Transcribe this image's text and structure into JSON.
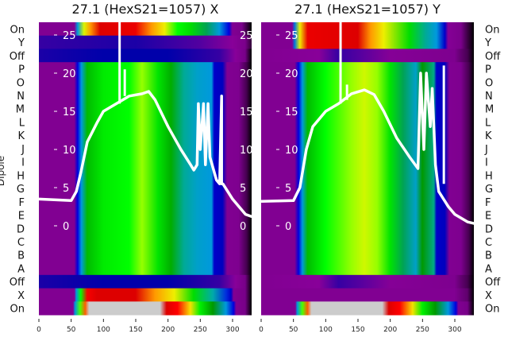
{
  "chart_data": {
    "type": "heatmap",
    "ylabel": "Dipole",
    "row_labels": [
      "On",
      "Y",
      "Off",
      "P",
      "O",
      "N",
      "M",
      "L",
      "K",
      "J",
      "I",
      "H",
      "G",
      "F",
      "E",
      "D",
      "C",
      "B",
      "A",
      "Off",
      "X",
      "On"
    ],
    "x_ticks": [
      0,
      50,
      100,
      150,
      200,
      250,
      300
    ],
    "x_tick_labels": [
      "0",
      "50",
      "100",
      "150",
      "200",
      "250",
      "300"
    ],
    "xlim": [
      0,
      330
    ],
    "overlay_y_ticks": [
      25,
      20,
      15,
      10,
      5,
      0
    ],
    "overlay_y_tick_labels": [
      "25",
      "20",
      "15",
      "10",
      "5",
      "0"
    ],
    "overlay_ylim": [
      -11.7,
      26.5
    ],
    "colormap": "nipy_spectral",
    "panels": [
      {
        "title": "27.1 (HexS21=1057) X",
        "row_profiles": [
          "on_top_x",
          "ybar_x",
          "off_x",
          "mid_x",
          "mid_x",
          "mid_x",
          "mid_x",
          "mid_x",
          "mid_x",
          "mid_x",
          "mid_x",
          "mid_x",
          "mid_x",
          "mid_x",
          "mid_x",
          "mid_x",
          "mid_x",
          "mid_x",
          "mid_x",
          "off_x",
          "xrow_x",
          "on_bot"
        ],
        "line": {
          "x": [
            0,
            50,
            58,
            65,
            75,
            90,
            100,
            120,
            140,
            160,
            170,
            180,
            200,
            220,
            235,
            240,
            245,
            247,
            250,
            255,
            258,
            262,
            265,
            270,
            275,
            280,
            283,
            283,
            285,
            300,
            320,
            330
          ],
          "y": [
            3.5,
            3.3,
            4.5,
            7,
            11,
            13.5,
            15,
            16,
            17,
            17.3,
            17.6,
            16.5,
            13,
            10,
            8,
            7.3,
            8,
            16,
            10,
            16,
            8,
            16,
            9,
            7.5,
            6,
            5.5,
            17,
            5.5,
            5.5,
            3.5,
            1.5,
            1.2
          ]
        },
        "spikes": [
          {
            "x": 125,
            "y": [
              16,
              27
            ]
          },
          {
            "x": 133,
            "y": [
              17,
              20.5
            ]
          }
        ]
      },
      {
        "title": "27.1 (HexS21=1057) Y",
        "row_profiles": [
          "on_top_y",
          "on_top_y",
          "off_y",
          "mid_y",
          "mid_y",
          "mid_y",
          "mid_y",
          "mid_y",
          "mid_y",
          "mid_y",
          "mid_y",
          "mid_y",
          "mid_y",
          "mid_y",
          "mid_y",
          "mid_y",
          "mid_y",
          "mid_y",
          "mid_y",
          "off_y",
          "xrow_y",
          "on_bot"
        ],
        "line": {
          "x": [
            0,
            50,
            60,
            70,
            80,
            100,
            120,
            140,
            160,
            175,
            190,
            210,
            230,
            243,
            247,
            252,
            256,
            262,
            265,
            270,
            275,
            290,
            300,
            320,
            330
          ],
          "y": [
            3.2,
            3.3,
            5,
            10,
            13,
            15,
            16,
            17.3,
            17.8,
            17.2,
            15,
            11.5,
            9,
            7.5,
            20,
            10,
            20,
            13,
            18,
            8,
            4.5,
            2.5,
            1.5,
            0.5,
            0.3
          ]
        },
        "spikes": [
          {
            "x": 123,
            "y": [
              16,
              27
            ]
          },
          {
            "x": 133,
            "y": [
              16.5,
              18.5
            ]
          },
          {
            "x": 283,
            "y": [
              5.5,
              21
            ]
          }
        ]
      }
    ],
    "profiles": {
      "mid_x": [
        [
          0,
          0.08
        ],
        [
          55,
          0.08
        ],
        [
          60,
          0.2
        ],
        [
          66,
          0.3
        ],
        [
          75,
          0.5
        ],
        [
          100,
          0.57
        ],
        [
          140,
          0.6
        ],
        [
          160,
          0.64
        ],
        [
          185,
          0.56
        ],
        [
          205,
          0.48
        ],
        [
          225,
          0.38
        ],
        [
          245,
          0.32
        ],
        [
          268,
          0.3
        ],
        [
          272,
          0.18
        ],
        [
          285,
          0.17
        ],
        [
          292,
          0.08
        ],
        [
          310,
          0.07
        ],
        [
          322,
          0.03
        ],
        [
          330,
          0
        ]
      ],
      "mid_y": [
        [
          0,
          0.08
        ],
        [
          52,
          0.08
        ],
        [
          58,
          0.2
        ],
        [
          64,
          0.3
        ],
        [
          72,
          0.5
        ],
        [
          100,
          0.6
        ],
        [
          140,
          0.64
        ],
        [
          160,
          0.67
        ],
        [
          180,
          0.64
        ],
        [
          200,
          0.56
        ],
        [
          220,
          0.42
        ],
        [
          240,
          0.32
        ],
        [
          250,
          0.45
        ],
        [
          268,
          0.4
        ],
        [
          272,
          0.18
        ],
        [
          285,
          0.17
        ],
        [
          292,
          0.08
        ],
        [
          310,
          0.07
        ],
        [
          322,
          0.03
        ],
        [
          330,
          0
        ]
      ],
      "on_top_x": [
        [
          0,
          0.08
        ],
        [
          55,
          0.08
        ],
        [
          60,
          0.3
        ],
        [
          70,
          0.68
        ],
        [
          80,
          0.8
        ],
        [
          95,
          0.9
        ],
        [
          150,
          0.88
        ],
        [
          175,
          0.8
        ],
        [
          195,
          0.7
        ],
        [
          215,
          0.6
        ],
        [
          235,
          0.55
        ],
        [
          260,
          0.42
        ],
        [
          280,
          0.3
        ],
        [
          295,
          0.2
        ],
        [
          300,
          0.08
        ],
        [
          315,
          0.06
        ],
        [
          330,
          0
        ]
      ],
      "ybar_x": [
        [
          0,
          0.13
        ],
        [
          150,
          0.14
        ],
        [
          250,
          0.12
        ],
        [
          300,
          0.1
        ],
        [
          320,
          0.06
        ],
        [
          330,
          0.02
        ]
      ],
      "off_x": [
        [
          0,
          0.14
        ],
        [
          100,
          0.15
        ],
        [
          200,
          0.15
        ],
        [
          280,
          0.13
        ],
        [
          305,
          0.1
        ],
        [
          320,
          0.05
        ],
        [
          330,
          0
        ]
      ],
      "xrow_x": [
        [
          0,
          0.08
        ],
        [
          55,
          0.08
        ],
        [
          58,
          0.3
        ],
        [
          65,
          0.6
        ],
        [
          75,
          0.86
        ],
        [
          90,
          0.9
        ],
        [
          150,
          0.9
        ],
        [
          180,
          0.8
        ],
        [
          210,
          0.7
        ],
        [
          240,
          0.55
        ],
        [
          270,
          0.35
        ],
        [
          290,
          0.22
        ],
        [
          298,
          0.18
        ],
        [
          302,
          0.08
        ],
        [
          320,
          0.05
        ],
        [
          330,
          0
        ]
      ],
      "on_top_y": [
        [
          0,
          0.08
        ],
        [
          48,
          0.08
        ],
        [
          52,
          0.25
        ],
        [
          60,
          0.7
        ],
        [
          72,
          0.88
        ],
        [
          150,
          0.9
        ],
        [
          170,
          0.8
        ],
        [
          190,
          0.7
        ],
        [
          230,
          0.55
        ],
        [
          255,
          0.38
        ],
        [
          272,
          0.3
        ],
        [
          285,
          0.18
        ],
        [
          290,
          0.09
        ],
        [
          310,
          0.06
        ],
        [
          330,
          0
        ]
      ],
      "off_y": [
        [
          0,
          0.08
        ],
        [
          90,
          0.1
        ],
        [
          120,
          0.13
        ],
        [
          150,
          0.12
        ],
        [
          200,
          0.09
        ],
        [
          300,
          0.07
        ],
        [
          320,
          0.03
        ],
        [
          330,
          0
        ]
      ],
      "xrow_y": [
        [
          0,
          0.08
        ],
        [
          300,
          0.08
        ],
        [
          320,
          0.04
        ],
        [
          330,
          0
        ]
      ],
      "on_bot": [
        [
          0,
          0.08
        ],
        [
          53,
          0.08
        ],
        [
          56,
          0.3
        ],
        [
          64,
          0.62
        ],
        [
          72,
          0.82
        ],
        [
          78,
          1.0
        ],
        [
          188,
          1.0
        ],
        [
          198,
          0.9
        ],
        [
          215,
          0.85
        ],
        [
          235,
          0.72
        ],
        [
          250,
          0.58
        ],
        [
          270,
          0.45
        ],
        [
          290,
          0.3
        ],
        [
          302,
          0.2
        ],
        [
          306,
          0.08
        ],
        [
          320,
          0.05
        ],
        [
          330,
          0
        ]
      ]
    }
  }
}
